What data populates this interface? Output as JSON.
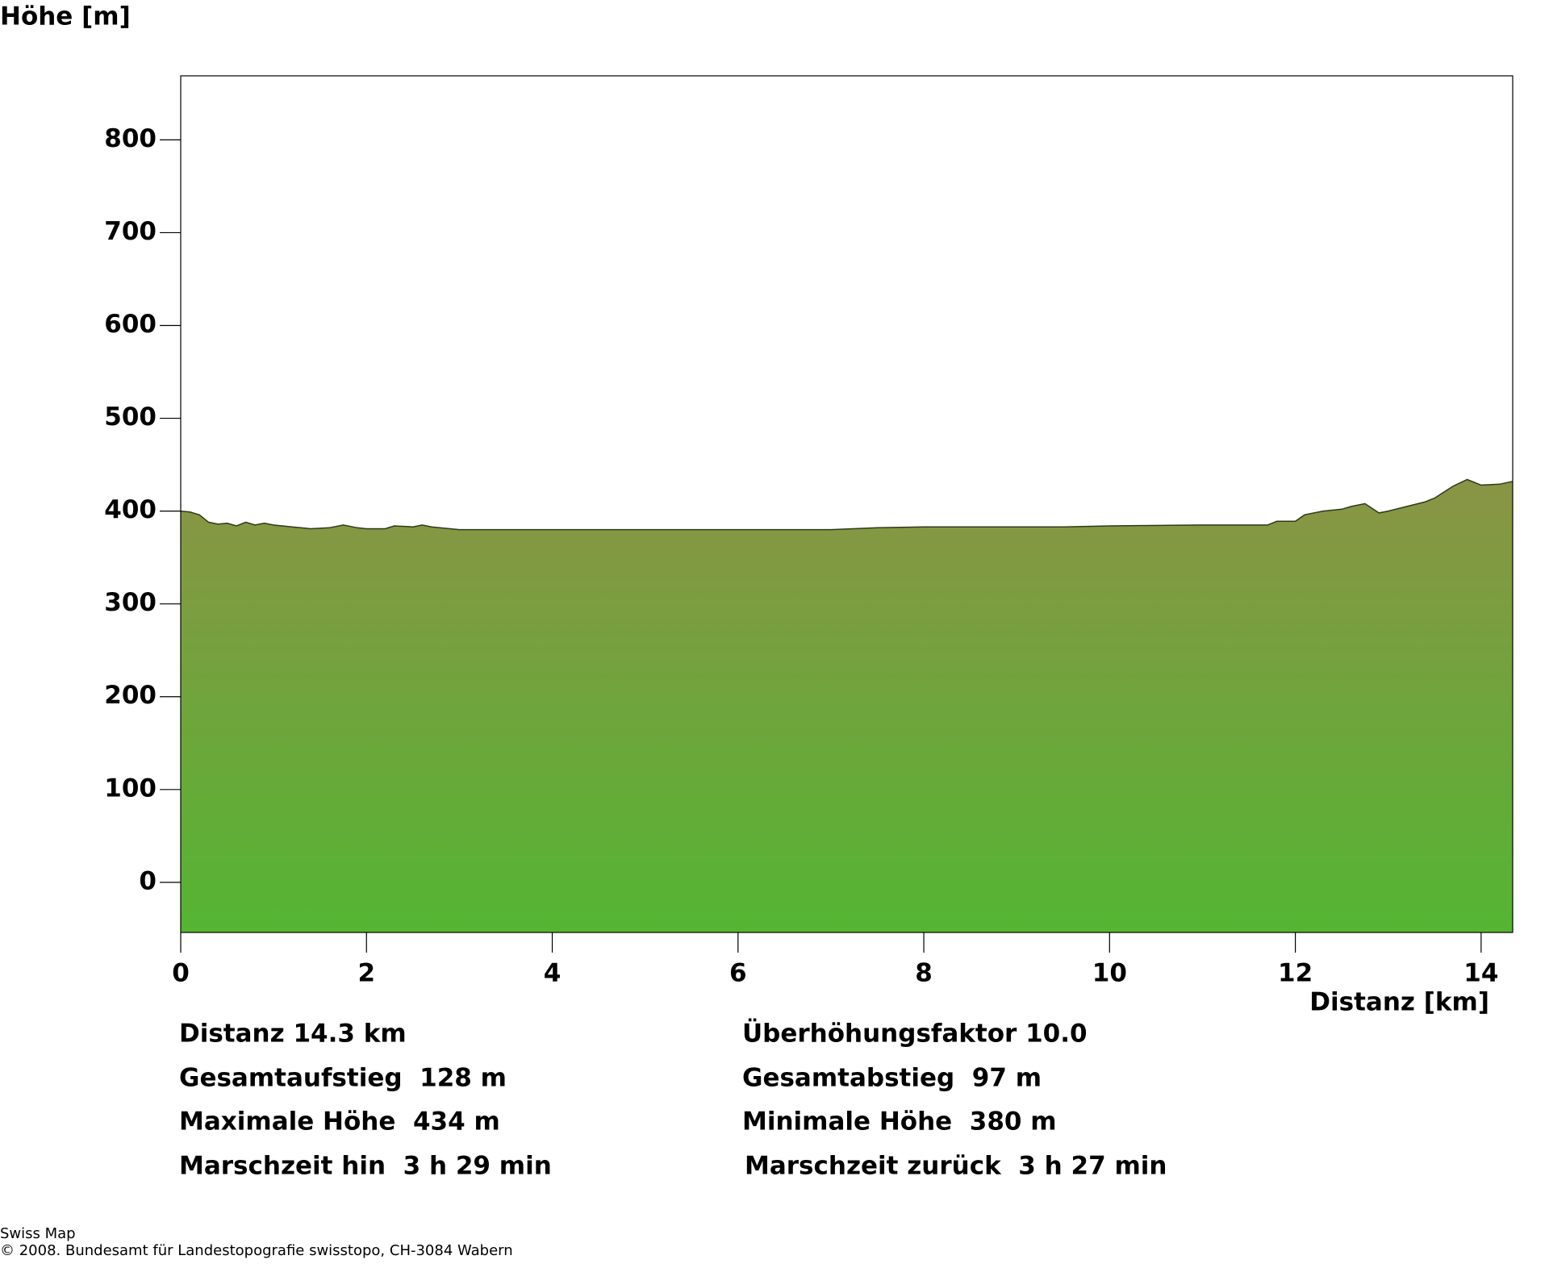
{
  "chart_data": {
    "type": "area",
    "y_label": "Höhe [m]",
    "x_label": "Distanz [km]",
    "x": [
      0,
      0.1,
      0.2,
      0.3,
      0.4,
      0.5,
      0.6,
      0.7,
      0.8,
      0.9,
      1.0,
      1.2,
      1.4,
      1.6,
      1.75,
      1.9,
      2.0,
      2.2,
      2.3,
      2.5,
      2.6,
      2.7,
      2.9,
      3.0,
      4.0,
      5.0,
      6.0,
      7.0,
      7.5,
      8.0,
      9.0,
      9.5,
      10.0,
      11.0,
      11.7,
      11.8,
      12.0,
      12.1,
      12.3,
      12.5,
      12.6,
      12.75,
      12.9,
      13.0,
      13.2,
      13.4,
      13.5,
      13.7,
      13.85,
      14.0,
      14.2,
      14.34
    ],
    "values": [
      400,
      399,
      396,
      388,
      386,
      387,
      384,
      388,
      385,
      387,
      385,
      383,
      381,
      382,
      385,
      382,
      381,
      381,
      384,
      383,
      385,
      383,
      381,
      380,
      380,
      380,
      380,
      380,
      382,
      383,
      383,
      383,
      384,
      385,
      385,
      389,
      389,
      396,
      400,
      402,
      405,
      408,
      398,
      400,
      405,
      410,
      414,
      427,
      434,
      428,
      429,
      432
    ],
    "xlim": [
      0,
      14.34
    ],
    "ylim": [
      -54,
      869
    ],
    "xticks": [
      0,
      2,
      4,
      6,
      8,
      10,
      12,
      14
    ],
    "yticks": [
      0,
      100,
      200,
      300,
      400,
      500,
      600,
      700,
      800
    ],
    "gradient": [
      "#8a9445",
      "#55b533"
    ],
    "line_color": "#2e3a1a",
    "stats": [
      [
        "Distanz 14.3 km",
        "Überhöhungsfaktor 10.0"
      ],
      [
        "Gesamtaufstieg  128 m",
        "Gesamtabstieg  97 m"
      ],
      [
        "Maximale Höhe  434 m",
        "Minimale Höhe  380 m"
      ],
      [
        "Marschzeit hin  3 h 29 min",
        "Marschzeit zurück  3 h 27 min"
      ]
    ]
  },
  "footer": [
    "Swiss Map",
    "© 2008. Bundesamt für Landestopografie swisstopo, CH-3084 Wabern"
  ]
}
